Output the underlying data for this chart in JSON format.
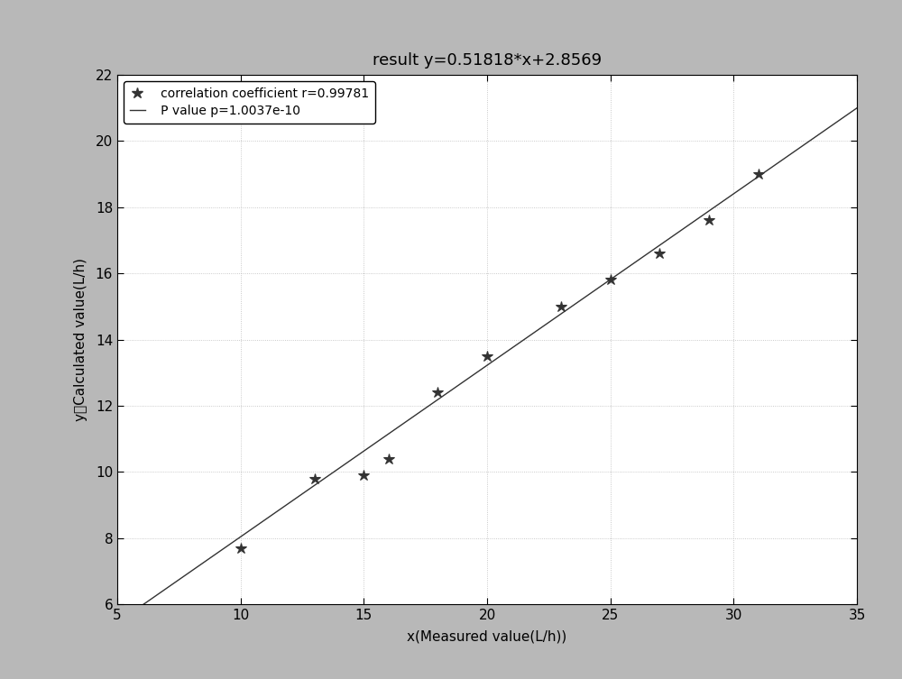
{
  "title": "result y=0.51818*x+2.8569",
  "xlabel": "x(Measured value(L/h))",
  "ylabel": "y（Calculated value(L/h)",
  "slope": 0.51818,
  "intercept": 2.8569,
  "r_value": 0.99781,
  "p_value": "1.0037e-10",
  "x_data": [
    10,
    13,
    15,
    16,
    18,
    20,
    23,
    25,
    27,
    29,
    31
  ],
  "y_data": [
    7.7,
    9.8,
    9.9,
    10.4,
    12.4,
    13.5,
    15.0,
    15.8,
    16.6,
    17.6,
    19.0
  ],
  "xlim": [
    5,
    35
  ],
  "ylim": [
    6,
    22
  ],
  "xticks": [
    5,
    10,
    15,
    20,
    25,
    30,
    35
  ],
  "yticks": [
    6,
    8,
    10,
    12,
    14,
    16,
    18,
    20,
    22
  ],
  "line_color": "#333333",
  "marker_color": "#333333",
  "background_color": "#b8b8b8",
  "plot_bg_color": "#ffffff",
  "legend_label_star": "   correlation coefficient r=0.99781",
  "legend_label_line": "   P value p=1.0037e-10",
  "title_fontsize": 13,
  "label_fontsize": 11,
  "tick_fontsize": 11
}
